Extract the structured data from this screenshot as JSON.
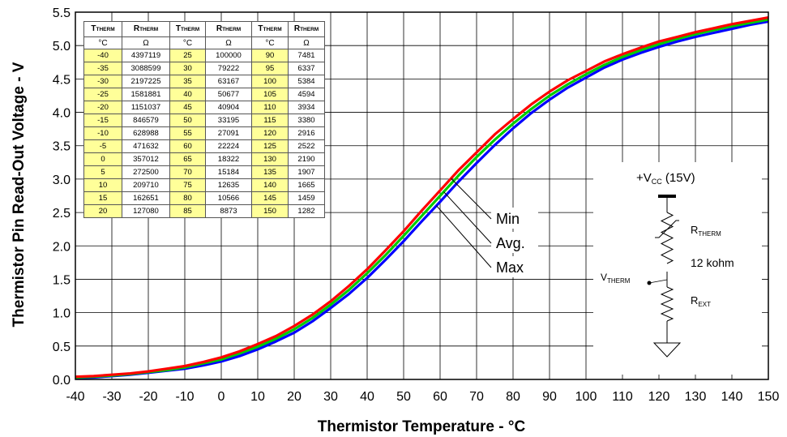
{
  "chart_data": {
    "type": "line",
    "xlabel": "Thermistor Temperature - °C",
    "ylabel": "Thermistor Pin Read-Out Voltage - V",
    "xlim": [
      -40,
      150
    ],
    "ylim": [
      0.0,
      5.5
    ],
    "x_ticks": [
      "-40",
      "-30",
      "-20",
      "-10",
      "0",
      "10",
      "20",
      "30",
      "40",
      "50",
      "60",
      "70",
      "80",
      "90",
      "100",
      "110",
      "120",
      "130",
      "140",
      "150"
    ],
    "y_ticks": [
      "0.0",
      "0.5",
      "1.0",
      "1.5",
      "2.0",
      "2.5",
      "3.0",
      "3.5",
      "4.0",
      "4.5",
      "5.0",
      "5.5"
    ],
    "grid": true,
    "x": [
      -40,
      -35,
      -30,
      -25,
      -20,
      -15,
      -10,
      -5,
      0,
      5,
      10,
      15,
      20,
      25,
      30,
      35,
      40,
      45,
      50,
      55,
      60,
      65,
      70,
      75,
      80,
      85,
      90,
      95,
      100,
      105,
      110,
      115,
      120,
      125,
      130,
      135,
      140,
      145,
      150
    ],
    "series": [
      {
        "name": "Min",
        "color": "#ff0000",
        "values": [
          0.04,
          0.05,
          0.07,
          0.09,
          0.12,
          0.16,
          0.2,
          0.26,
          0.33,
          0.42,
          0.53,
          0.65,
          0.8,
          0.97,
          1.17,
          1.4,
          1.65,
          1.93,
          2.22,
          2.53,
          2.83,
          3.13,
          3.4,
          3.67,
          3.9,
          4.12,
          4.31,
          4.48,
          4.62,
          4.76,
          4.87,
          4.97,
          5.06,
          5.13,
          5.2,
          5.26,
          5.32,
          5.37,
          5.42
        ]
      },
      {
        "name": "Avg.",
        "color": "#00cc00",
        "values": [
          0.03,
          0.04,
          0.06,
          0.08,
          0.11,
          0.14,
          0.18,
          0.24,
          0.3,
          0.39,
          0.49,
          0.61,
          0.75,
          0.92,
          1.12,
          1.34,
          1.59,
          1.86,
          2.15,
          2.45,
          2.75,
          3.05,
          3.33,
          3.59,
          3.83,
          4.05,
          4.25,
          4.42,
          4.57,
          4.71,
          4.83,
          4.93,
          5.02,
          5.1,
          5.17,
          5.23,
          5.29,
          5.34,
          5.39
        ]
      },
      {
        "name": "Max",
        "color": "#0000ff",
        "values": [
          0.02,
          0.03,
          0.05,
          0.07,
          0.1,
          0.13,
          0.16,
          0.21,
          0.27,
          0.35,
          0.45,
          0.57,
          0.7,
          0.87,
          1.07,
          1.28,
          1.52,
          1.79,
          2.07,
          2.37,
          2.66,
          2.96,
          3.24,
          3.51,
          3.76,
          3.99,
          4.19,
          4.37,
          4.52,
          4.67,
          4.79,
          4.89,
          4.98,
          5.06,
          5.13,
          5.19,
          5.25,
          5.31,
          5.36
        ]
      }
    ],
    "legend": {
      "labels": [
        "Min",
        "Avg.",
        "Max"
      ],
      "placement": "callout on curves near 60°C"
    },
    "table": {
      "header": [
        [
          "T",
          "THERM"
        ],
        [
          "R",
          "THERM"
        ],
        [
          "T",
          "THERM"
        ],
        [
          "R",
          "THERM"
        ],
        [
          "T",
          "THERM"
        ],
        [
          "R",
          "THERM"
        ]
      ],
      "units": [
        "°C",
        "Ω",
        "°C",
        "Ω",
        "°C",
        "Ω"
      ],
      "rows": [
        [
          "-40",
          "4397119",
          "25",
          "100000",
          "90",
          "7481"
        ],
        [
          "-35",
          "3088599",
          "30",
          "79222",
          "95",
          "6337"
        ],
        [
          "-30",
          "2197225",
          "35",
          "63167",
          "100",
          "5384"
        ],
        [
          "-25",
          "1581881",
          "40",
          "50677",
          "105",
          "4594"
        ],
        [
          "-20",
          "1151037",
          "45",
          "40904",
          "110",
          "3934"
        ],
        [
          "-15",
          "846579",
          "50",
          "33195",
          "115",
          "3380"
        ],
        [
          "-10",
          "628988",
          "55",
          "27091",
          "120",
          "2916"
        ],
        [
          "-5",
          "471632",
          "60",
          "22224",
          "125",
          "2522"
        ],
        [
          "0",
          "357012",
          "65",
          "18322",
          "130",
          "2190"
        ],
        [
          "5",
          "272500",
          "70",
          "15184",
          "135",
          "1907"
        ],
        [
          "10",
          "209710",
          "75",
          "12635",
          "140",
          "1665"
        ],
        [
          "15",
          "162651",
          "80",
          "10566",
          "145",
          "1459"
        ],
        [
          "20",
          "127080",
          "85",
          "8873",
          "150",
          "1282"
        ]
      ]
    },
    "circuit": {
      "vcc": {
        "main": "+V",
        "sub": "CC",
        "suffix": " (15V)"
      },
      "rtherm": {
        "main": "R",
        "sub": "THERM"
      },
      "resistor_value": "12 kohm",
      "vtherm": {
        "main": "V",
        "sub": "THERM"
      },
      "rext": {
        "main": "R",
        "sub": "EXT"
      }
    }
  }
}
